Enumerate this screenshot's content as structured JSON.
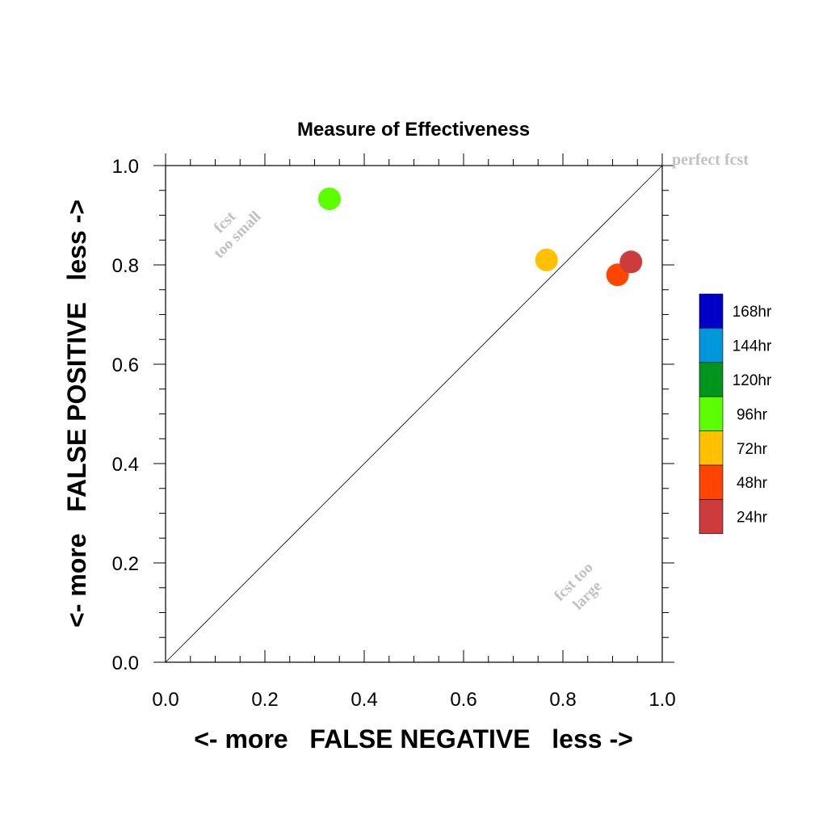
{
  "chart_data": {
    "type": "scatter",
    "title": "Measure of Effectiveness",
    "xlabel": "<- more   FALSE NEGATIVE   less ->",
    "ylabel": "<- more   FALSE POSITIVE   less ->",
    "xlim": [
      0.0,
      1.0
    ],
    "ylim": [
      0.0,
      1.0
    ],
    "x_ticks": [
      "0.0",
      "0.2",
      "0.4",
      "0.6",
      "0.8",
      "1.0"
    ],
    "y_ticks": [
      "0.0",
      "0.2",
      "0.4",
      "0.6",
      "0.8",
      "1.0"
    ],
    "grid": false,
    "diagonal_line": true,
    "annotations": {
      "perfect": "perfect fcst",
      "too_small_1": "fcst",
      "too_small_2": "too small",
      "too_large_1": "fcst too",
      "too_large_2": "large"
    },
    "annotation_color": "#c0c0c0",
    "points": [
      {
        "label": "96hr",
        "x": 0.33,
        "y": 0.933,
        "color": "#5cff00"
      },
      {
        "label": "72hr",
        "x": 0.767,
        "y": 0.81,
        "color": "#ffc000"
      },
      {
        "label": "48hr",
        "x": 0.91,
        "y": 0.78,
        "color": "#ff4500"
      },
      {
        "label": "24hr",
        "x": 0.937,
        "y": 0.806,
        "color": "#cd3c3c"
      }
    ],
    "legend_placement": "right",
    "legend": [
      {
        "label": "168hr",
        "color": "#0000c8"
      },
      {
        "label": "144hr",
        "color": "#0096dc"
      },
      {
        "label": "120hr",
        "color": "#00961e"
      },
      {
        "label": "96hr",
        "color": "#5cff00"
      },
      {
        "label": "72hr",
        "color": "#ffc000"
      },
      {
        "label": "48hr",
        "color": "#ff4500"
      },
      {
        "label": "24hr",
        "color": "#cd3c3c"
      }
    ]
  }
}
